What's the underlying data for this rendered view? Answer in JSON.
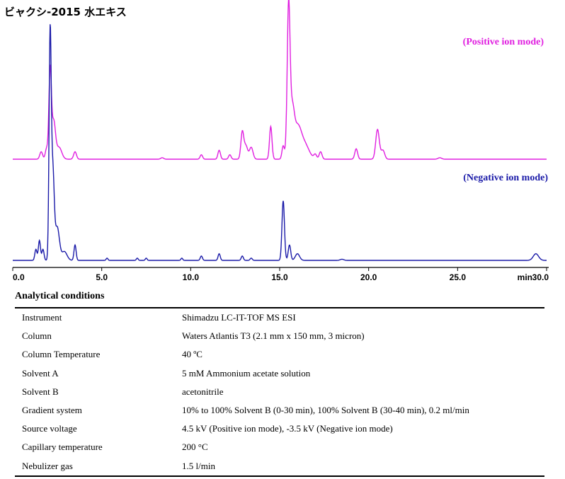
{
  "title": "ビャクシ-2015 水エキス",
  "chart_data": {
    "type": "line",
    "x_unit": "min",
    "xlim": [
      0,
      30
    ],
    "x_ticks": [
      "0.0",
      "5.0",
      "10.0",
      "15.0",
      "20.0",
      "25.0",
      "30.0"
    ],
    "x_tick_values": [
      0,
      5,
      10,
      15,
      20,
      25,
      30
    ],
    "grid": false,
    "series": [
      {
        "name": "(Positive ion mode)",
        "color": "#e020e0",
        "baseline": 0,
        "peaks": [
          [
            1.6,
            0.05,
            0.08
          ],
          [
            1.9,
            0.07,
            0.07
          ],
          [
            2.1,
            0.6,
            0.07
          ],
          [
            2.3,
            0.25,
            0.1
          ],
          [
            2.6,
            0.08,
            0.15
          ],
          [
            3.5,
            0.05,
            0.08
          ],
          [
            8.4,
            0.01,
            0.08
          ],
          [
            10.6,
            0.03,
            0.07
          ],
          [
            11.6,
            0.06,
            0.07
          ],
          [
            12.2,
            0.03,
            0.07
          ],
          [
            12.9,
            0.18,
            0.08
          ],
          [
            13.1,
            0.09,
            0.1
          ],
          [
            13.4,
            0.08,
            0.1
          ],
          [
            14.5,
            0.22,
            0.07
          ],
          [
            15.2,
            0.09,
            0.07
          ],
          [
            15.5,
            1.0,
            0.08
          ],
          [
            15.7,
            0.3,
            0.12
          ],
          [
            16.0,
            0.2,
            0.2
          ],
          [
            16.4,
            0.1,
            0.25
          ],
          [
            17.0,
            0.03,
            0.08
          ],
          [
            17.3,
            0.05,
            0.08
          ],
          [
            19.3,
            0.07,
            0.08
          ],
          [
            20.5,
            0.2,
            0.1
          ],
          [
            20.8,
            0.06,
            0.1
          ],
          [
            24.0,
            0.01,
            0.1
          ]
        ]
      },
      {
        "name": "(Negative ion mode)",
        "color": "#1a1aa8",
        "baseline": 0,
        "peaks": [
          [
            1.3,
            0.05,
            0.06
          ],
          [
            1.5,
            0.09,
            0.06
          ],
          [
            1.7,
            0.05,
            0.06
          ],
          [
            2.1,
            1.0,
            0.06
          ],
          [
            2.25,
            0.4,
            0.08
          ],
          [
            2.5,
            0.15,
            0.12
          ],
          [
            2.9,
            0.04,
            0.15
          ],
          [
            3.5,
            0.07,
            0.06
          ],
          [
            5.3,
            0.01,
            0.05
          ],
          [
            7.0,
            0.01,
            0.05
          ],
          [
            7.5,
            0.01,
            0.05
          ],
          [
            9.5,
            0.01,
            0.05
          ],
          [
            10.6,
            0.02,
            0.06
          ],
          [
            11.6,
            0.03,
            0.06
          ],
          [
            12.9,
            0.02,
            0.06
          ],
          [
            13.4,
            0.01,
            0.06
          ],
          [
            15.2,
            0.27,
            0.07
          ],
          [
            15.55,
            0.07,
            0.07
          ],
          [
            16.0,
            0.03,
            0.12
          ],
          [
            18.5,
            0.005,
            0.1
          ],
          [
            29.4,
            0.03,
            0.15
          ]
        ]
      }
    ]
  },
  "conditions": {
    "heading": "Analytical conditions",
    "rows": [
      {
        "key": "Instrument",
        "value": "Shimadzu LC-IT-TOF MS ESI"
      },
      {
        "key": "Column",
        "value": "Waters Atlantis T3 (2.1 mm x 150 mm, 3 micron)"
      },
      {
        "key": "Column Temperature",
        "value": "40 ºC"
      },
      {
        "key": "Solvent A",
        "value": "5 mM Ammonium acetate solution"
      },
      {
        "key": "Solvent B",
        "value": "acetonitrile"
      },
      {
        "key": "Gradient system",
        "value": "10% to 100% Solvent B (0-30 min), 100% Solvent B (30-40 min), 0.2 ml/min"
      },
      {
        "key": "Source voltage",
        "value": "4.5 kV (Positive ion mode), -3.5 kV (Negative ion mode)"
      },
      {
        "key": "Capillary temperature",
        "value": "200 °C"
      },
      {
        "key": "Nebulizer gas",
        "value": "1.5 l/min"
      }
    ]
  }
}
